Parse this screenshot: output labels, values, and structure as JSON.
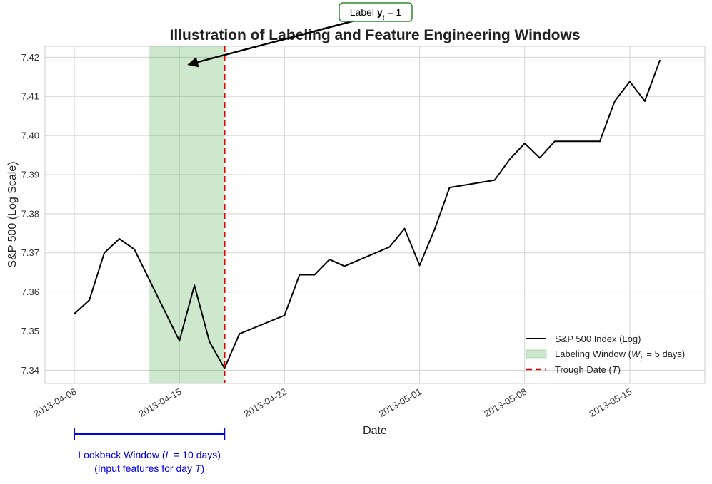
{
  "chart_data": {
    "type": "line",
    "title": "Illustration of Labeling and Feature Engineering Windows",
    "xlabel": "Date",
    "ylabel": "S&P 500 (Log Scale)",
    "xlim": [
      "2013-04-08",
      "2013-05-18"
    ],
    "ylim": [
      7.3366,
      7.4228
    ],
    "yticks": [
      7.34,
      7.35,
      7.36,
      7.37,
      7.38,
      7.39,
      7.4,
      7.41,
      7.42
    ],
    "ytick_labels": [
      "7.34",
      "7.35",
      "7.36",
      "7.37",
      "7.38",
      "7.39",
      "7.40",
      "7.41",
      "7.42"
    ],
    "xticks": [
      "2013-04-08",
      "2013-04-15",
      "2013-04-22",
      "2013-05-01",
      "2013-05-08",
      "2013-05-15"
    ],
    "grid": true,
    "legend_position": "lower-right",
    "series": [
      {
        "name": "S&P 500 Index (Log)",
        "color": "#000000",
        "points": [
          [
            "2013-04-08",
            7.3544
          ],
          [
            "2013-04-09",
            7.3579
          ],
          [
            "2013-04-10",
            7.37
          ],
          [
            "2013-04-11",
            7.3736
          ],
          [
            "2013-04-12",
            7.3709
          ],
          [
            "2013-04-15",
            7.3475
          ],
          [
            "2013-04-16",
            7.3617
          ],
          [
            "2013-04-17",
            7.3473
          ],
          [
            "2013-04-18",
            7.3405
          ],
          [
            "2013-04-19",
            7.3493
          ],
          [
            "2013-04-22",
            7.354
          ],
          [
            "2013-04-23",
            7.3644
          ],
          [
            "2013-04-24",
            7.3644
          ],
          [
            "2013-04-25",
            7.3683
          ],
          [
            "2013-04-26",
            7.3666
          ],
          [
            "2013-04-29",
            7.3715
          ],
          [
            "2013-04-30",
            7.3762
          ],
          [
            "2013-05-01",
            7.3668
          ],
          [
            "2013-05-02",
            7.376
          ],
          [
            "2013-05-03",
            7.3867
          ],
          [
            "2013-05-06",
            7.3886
          ],
          [
            "2013-05-07",
            7.3939
          ],
          [
            "2013-05-08",
            7.398
          ],
          [
            "2013-05-09",
            7.3943
          ],
          [
            "2013-05-10",
            7.3985
          ],
          [
            "2013-05-13",
            7.3985
          ],
          [
            "2013-05-14",
            7.4088
          ],
          [
            "2013-05-15",
            7.4138
          ],
          [
            "2013-05-16",
            7.4088
          ],
          [
            "2013-05-17",
            7.4192
          ]
        ]
      }
    ],
    "labeling_window": {
      "start": "2013-04-13",
      "end": "2013-04-18",
      "color": "#2ca02c",
      "legend_prefix": "Labeling Window (",
      "legend_math_var": "W",
      "legend_math_sub": "L",
      "legend_suffix": " = 5 days)"
    },
    "trough": {
      "date": "2013-04-18",
      "color": "#e00000",
      "legend_prefix": "Trough Date (",
      "legend_math": "T",
      "legend_suffix": ")"
    },
    "annotation": {
      "text_prefix": "Label ",
      "text_math_bold": "y",
      "text_math_sub": "t",
      "text_suffix": " = 1",
      "points_to": [
        "2013-04-15",
        7.4193
      ],
      "border_color": "#2e8b2e"
    },
    "lookback_window": {
      "start": "2013-04-08",
      "end": "2013-04-18",
      "color": "#0000ee",
      "line1_prefix": "Lookback Window (",
      "line1_math": "L",
      "line1_suffix": " = 10 days)",
      "line2_prefix": "(Input features for day ",
      "line2_math": "T",
      "line2_suffix": ")"
    }
  }
}
